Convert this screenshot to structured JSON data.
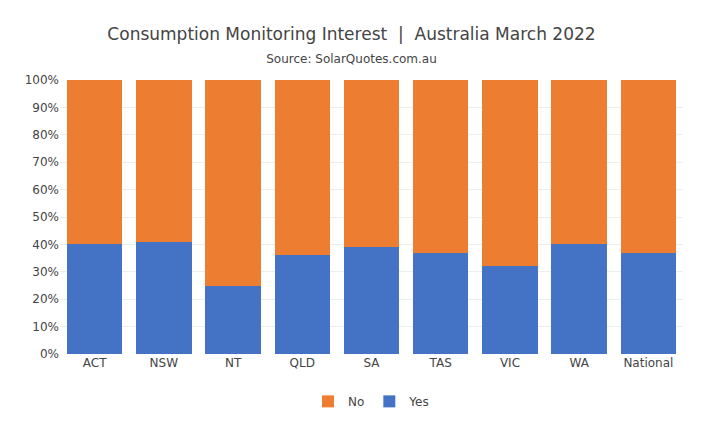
{
  "chart_data": {
    "type": "bar",
    "title": "Consumption Monitoring Interest  |  Australia March 2022",
    "subtitle": "Source: SolarQuotes.com.au",
    "categories": [
      "ACT",
      "NSW",
      "NT",
      "QLD",
      "SA",
      "TAS",
      "VIC",
      "WA",
      "National"
    ],
    "series": [
      {
        "name": "Yes",
        "color": "#4472C4",
        "values": [
          40,
          41,
          25,
          36,
          39,
          37,
          32,
          40,
          37
        ]
      },
      {
        "name": "No",
        "color": "#ED7D31",
        "values": [
          60,
          59,
          75,
          64,
          61,
          63,
          68,
          60,
          63
        ]
      }
    ],
    "stacked": true,
    "ylim": [
      0,
      100
    ],
    "yticks": [
      {
        "value": 0,
        "label": "0%"
      },
      {
        "value": 10,
        "label": "10%"
      },
      {
        "value": 20,
        "label": "20%"
      },
      {
        "value": 30,
        "label": "30%"
      },
      {
        "value": 40,
        "label": "40%"
      },
      {
        "value": 50,
        "label": "50%"
      },
      {
        "value": 60,
        "label": "60%"
      },
      {
        "value": 70,
        "label": "70%"
      },
      {
        "value": 80,
        "label": "80%"
      },
      {
        "value": 90,
        "label": "90%"
      },
      {
        "value": 100,
        "label": "100%"
      }
    ],
    "grid": true,
    "legend": "bottom"
  }
}
